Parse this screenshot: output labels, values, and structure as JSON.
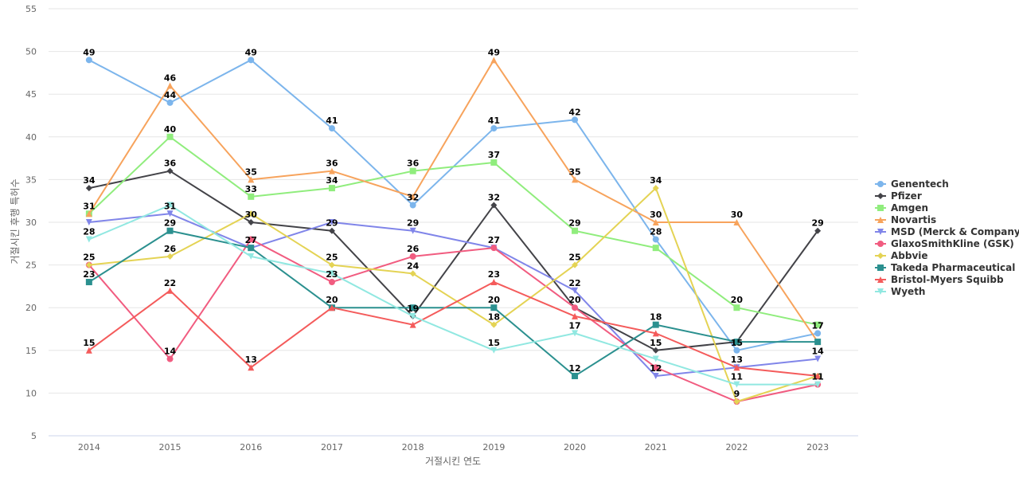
{
  "chart_data": {
    "type": "line",
    "xlabel": "거절시킨 연도",
    "ylabel": "거절시킨 후행 특허수",
    "ylim": [
      5,
      55
    ],
    "yticks": [
      5,
      10,
      15,
      20,
      25,
      30,
      35,
      40,
      45,
      50,
      55
    ],
    "grid": true,
    "legend_position": "right",
    "categories": [
      "2014",
      "2015",
      "2016",
      "2017",
      "2018",
      "2019",
      "2020",
      "2021",
      "2022",
      "2023"
    ],
    "series": [
      {
        "name": "Genentech",
        "color": "#7cb5ec",
        "marker": "circle",
        "values": [
          49,
          44,
          49,
          41,
          32,
          41,
          42,
          28,
          15,
          17
        ]
      },
      {
        "name": "Pfizer",
        "color": "#434348",
        "marker": "diamond",
        "values": [
          34,
          36,
          30,
          29,
          19,
          32,
          20,
          15,
          16,
          29
        ]
      },
      {
        "name": "Amgen",
        "color": "#90ed7d",
        "marker": "square",
        "values": [
          31,
          40,
          33,
          34,
          36,
          37,
          29,
          27,
          20,
          18
        ]
      },
      {
        "name": "Novartis",
        "color": "#f7a35c",
        "marker": "triangle",
        "values": [
          31,
          46,
          35,
          36,
          33,
          49,
          35,
          30,
          30,
          16
        ]
      },
      {
        "name": "MSD (Merck & Company)",
        "color": "#8085e9",
        "marker": "triangle-down",
        "values": [
          30,
          31,
          27,
          30,
          29,
          27,
          22,
          12,
          13,
          14
        ]
      },
      {
        "name": "GlaxoSmithKline (GSK)",
        "color": "#f15c80",
        "marker": "circle",
        "values": [
          25,
          14,
          28,
          23,
          26,
          27,
          20,
          13,
          9,
          11
        ]
      },
      {
        "name": "Abbvie",
        "color": "#e4d354",
        "marker": "diamond",
        "values": [
          25,
          26,
          31,
          25,
          24,
          18,
          25,
          34,
          9,
          12
        ]
      },
      {
        "name": "Takeda Pharmaceutical",
        "color": "#2b908f",
        "marker": "square",
        "values": [
          23,
          29,
          27,
          20,
          20,
          20,
          12,
          18,
          16,
          16
        ]
      },
      {
        "name": "Bristol-Myers Squibb",
        "color": "#f45b5b",
        "marker": "triangle",
        "values": [
          15,
          22,
          13,
          20,
          18,
          23,
          19,
          17,
          13,
          12
        ]
      },
      {
        "name": "Wyeth",
        "color": "#91e8e1",
        "marker": "triangle-down",
        "values": [
          28,
          32,
          26,
          24,
          19,
          15,
          17,
          14,
          11,
          11
        ]
      }
    ],
    "data_labels": [
      {
        "category": "2014",
        "value": 49,
        "text": "49"
      },
      {
        "category": "2014",
        "value": 34,
        "text": "34"
      },
      {
        "category": "2014",
        "value": 31,
        "text": "31"
      },
      {
        "category": "2014",
        "value": 28,
        "text": "28"
      },
      {
        "category": "2014",
        "value": 25,
        "text": "25"
      },
      {
        "category": "2014",
        "value": 23,
        "text": "23"
      },
      {
        "category": "2014",
        "value": 15,
        "text": "15"
      },
      {
        "category": "2015",
        "value": 46,
        "text": "46"
      },
      {
        "category": "2015",
        "value": 44,
        "text": "44"
      },
      {
        "category": "2015",
        "value": 40,
        "text": "40"
      },
      {
        "category": "2015",
        "value": 36,
        "text": "36"
      },
      {
        "category": "2015",
        "value": 31,
        "text": "31"
      },
      {
        "category": "2015",
        "value": 29,
        "text": "29"
      },
      {
        "category": "2015",
        "value": 26,
        "text": "26"
      },
      {
        "category": "2015",
        "value": 22,
        "text": "22"
      },
      {
        "category": "2015",
        "value": 14,
        "text": "14"
      },
      {
        "category": "2016",
        "value": 49,
        "text": "49"
      },
      {
        "category": "2016",
        "value": 35,
        "text": "35"
      },
      {
        "category": "2016",
        "value": 33,
        "text": "33"
      },
      {
        "category": "2016",
        "value": 30,
        "text": "30"
      },
      {
        "category": "2016",
        "value": 27,
        "text": "27"
      },
      {
        "category": "2016",
        "value": 13,
        "text": "13"
      },
      {
        "category": "2017",
        "value": 41,
        "text": "41"
      },
      {
        "category": "2017",
        "value": 36,
        "text": "36"
      },
      {
        "category": "2017",
        "value": 34,
        "text": "34"
      },
      {
        "category": "2017",
        "value": 29,
        "text": "29"
      },
      {
        "category": "2017",
        "value": 25,
        "text": "25"
      },
      {
        "category": "2017",
        "value": 23,
        "text": "23"
      },
      {
        "category": "2017",
        "value": 20,
        "text": "20"
      },
      {
        "category": "2018",
        "value": 36,
        "text": "36"
      },
      {
        "category": "2018",
        "value": 32,
        "text": "32"
      },
      {
        "category": "2018",
        "value": 29,
        "text": "29"
      },
      {
        "category": "2018",
        "value": 26,
        "text": "26"
      },
      {
        "category": "2018",
        "value": 24,
        "text": "24"
      },
      {
        "category": "2018",
        "value": 19,
        "text": "19"
      },
      {
        "category": "2019",
        "value": 49,
        "text": "49"
      },
      {
        "category": "2019",
        "value": 41,
        "text": "41"
      },
      {
        "category": "2019",
        "value": 37,
        "text": "37"
      },
      {
        "category": "2019",
        "value": 32,
        "text": "32"
      },
      {
        "category": "2019",
        "value": 27,
        "text": "27"
      },
      {
        "category": "2019",
        "value": 23,
        "text": "23"
      },
      {
        "category": "2019",
        "value": 20,
        "text": "20"
      },
      {
        "category": "2019",
        "value": 18,
        "text": "18"
      },
      {
        "category": "2019",
        "value": 15,
        "text": "15"
      },
      {
        "category": "2020",
        "value": 42,
        "text": "42"
      },
      {
        "category": "2020",
        "value": 35,
        "text": "35"
      },
      {
        "category": "2020",
        "value": 29,
        "text": "29"
      },
      {
        "category": "2020",
        "value": 25,
        "text": "25"
      },
      {
        "category": "2020",
        "value": 22,
        "text": "22"
      },
      {
        "category": "2020",
        "value": 20,
        "text": "20"
      },
      {
        "category": "2020",
        "value": 17,
        "text": "17"
      },
      {
        "category": "2020",
        "value": 12,
        "text": "12"
      },
      {
        "category": "2021",
        "value": 34,
        "text": "34"
      },
      {
        "category": "2021",
        "value": 30,
        "text": "30"
      },
      {
        "category": "2021",
        "value": 28,
        "text": "28"
      },
      {
        "category": "2021",
        "value": 18,
        "text": "18"
      },
      {
        "category": "2021",
        "value": 15,
        "text": "15"
      },
      {
        "category": "2021",
        "value": 12,
        "text": "12"
      },
      {
        "category": "2022",
        "value": 30,
        "text": "30"
      },
      {
        "category": "2022",
        "value": 20,
        "text": "20"
      },
      {
        "category": "2022",
        "value": 15,
        "text": "15"
      },
      {
        "category": "2022",
        "value": 13,
        "text": "13"
      },
      {
        "category": "2022",
        "value": 11,
        "text": "11"
      },
      {
        "category": "2022",
        "value": 9,
        "text": "9"
      },
      {
        "category": "2023",
        "value": 29,
        "text": "29"
      },
      {
        "category": "2023",
        "value": 17,
        "text": "17"
      },
      {
        "category": "2023",
        "value": 14,
        "text": "14"
      },
      {
        "category": "2023",
        "value": 11,
        "text": "11"
      }
    ]
  }
}
